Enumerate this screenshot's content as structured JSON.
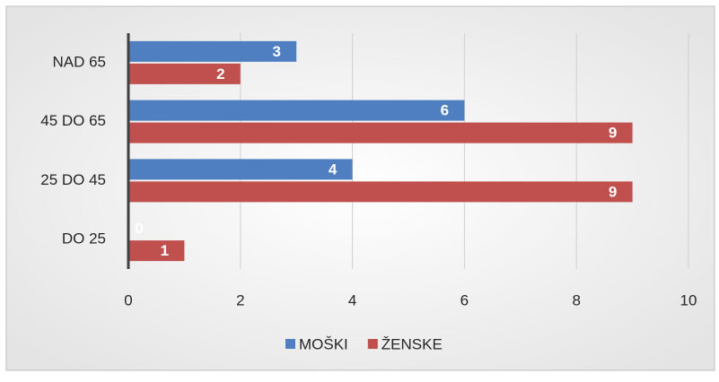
{
  "chart_data": {
    "type": "hbar",
    "categories": [
      "NAD 65",
      "45 DO 65",
      "25 DO 45",
      "DO 25"
    ],
    "series": [
      {
        "name": "MOŠKI",
        "color": "#4f7fc0",
        "values": [
          3,
          6,
          4,
          0
        ]
      },
      {
        "name": "ŽENSKE",
        "color": "#c0504d",
        "values": [
          2,
          9,
          9,
          1
        ]
      }
    ],
    "xlim": [
      0,
      10
    ],
    "xticks": [
      0,
      2,
      4,
      6,
      8,
      10
    ],
    "grid": true,
    "legend": "bottom"
  }
}
